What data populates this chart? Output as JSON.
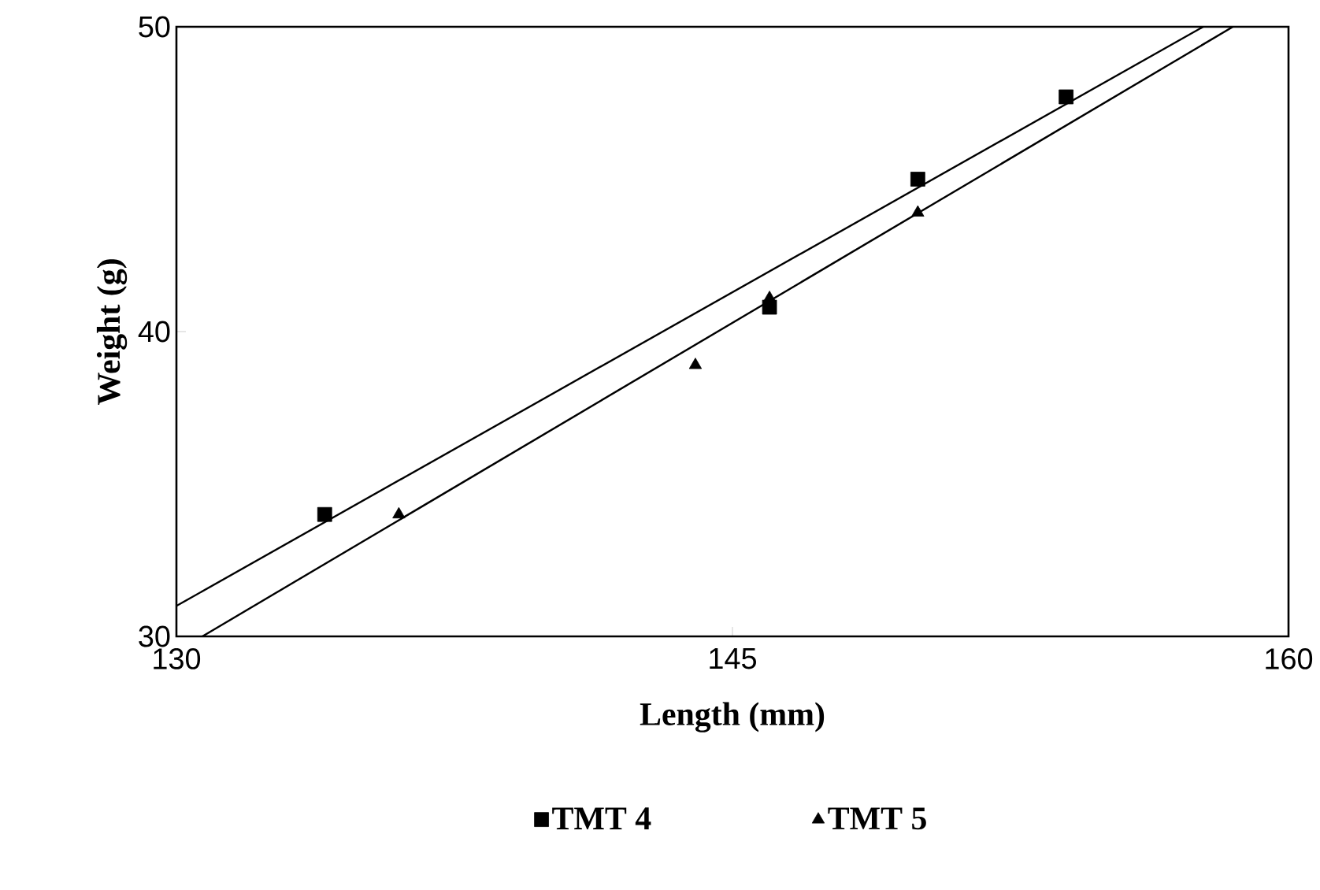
{
  "chart_data": {
    "type": "scatter",
    "xlabel": "Length (mm)",
    "ylabel": "Weight (g)",
    "xlim": [
      130,
      160
    ],
    "ylim": [
      30,
      50
    ],
    "xticks": [
      130,
      145,
      160
    ],
    "yticks": [
      30,
      40,
      50
    ],
    "grid": false,
    "legend": "bottom",
    "series": [
      {
        "name": "TMT 4",
        "color": "#000000",
        "marker": "square",
        "x": [
          134.0,
          146.0,
          150.0,
          154.0
        ],
        "values": [
          34.0,
          40.8,
          45.0,
          47.7
        ]
      },
      {
        "name": "TMT 5",
        "color": "#000000",
        "marker": "triangle",
        "x": [
          136.0,
          144.0,
          146.0,
          150.0
        ],
        "values": [
          34.0,
          38.9,
          41.1,
          43.9
        ]
      },
      {
        "type": "line",
        "color": "#000000",
        "marker": "none",
        "x": [
          130.0,
          157.7
        ],
        "values": [
          31.0,
          50.0
        ]
      },
      {
        "type": "line",
        "color": "#000000",
        "marker": "none",
        "x": [
          130.7,
          158.5
        ],
        "values": [
          30.0,
          50.0
        ]
      }
    ]
  }
}
